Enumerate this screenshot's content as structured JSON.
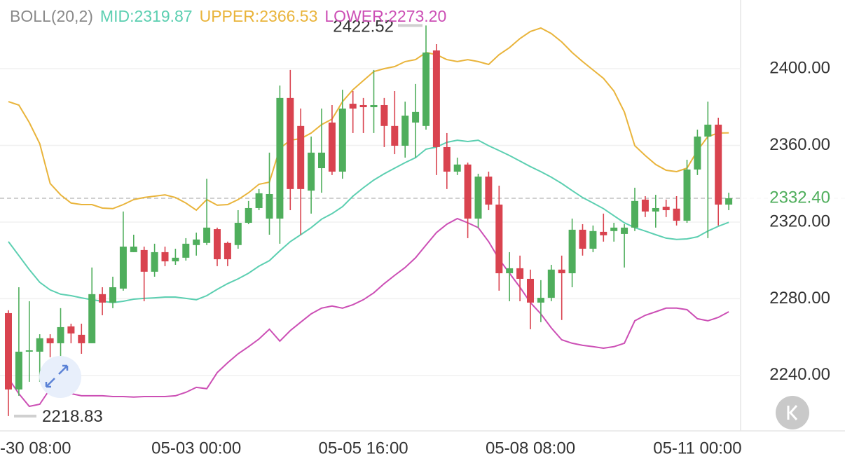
{
  "chart_data": {
    "type": "candlestick",
    "legend_title": "BOLL(20,2)",
    "categories": [
      null,
      null,
      "-30 08:00",
      null,
      null,
      null,
      null,
      null,
      null,
      null,
      null,
      null,
      null,
      null,
      null,
      null,
      null,
      null,
      "05-03 00:00",
      null,
      null,
      null,
      null,
      null,
      null,
      null,
      null,
      null,
      null,
      null,
      null,
      null,
      null,
      null,
      "05-05 16:00",
      null,
      null,
      null,
      null,
      null,
      null,
      null,
      null,
      null,
      null,
      null,
      null,
      null,
      null,
      null,
      "05-08 08:00",
      null,
      null,
      null,
      null,
      null,
      null,
      null,
      null,
      null,
      null,
      null,
      null,
      null,
      null,
      null,
      "05-11 00:00",
      null,
      null,
      null
    ],
    "open": [
      2272.5,
      2232.7,
      2252.4,
      2252.4,
      2259.4,
      2256.8,
      2265.6,
      2261.2,
      2256.8,
      2282.4,
      2278,
      2285.3,
      2304.3,
      2305.4,
      2294.1,
      2304.3,
      2299.5,
      2301.4,
      2308,
      2309.1,
      2316.3,
      2309.1,
      2308,
      2319.6,
      2327.3,
      2321.8,
      2321.8,
      2384.7,
      2370.1,
      2336.4,
      2348.1,
      2371.9,
      2346.3,
      2381.7,
      2381,
      2379.9,
      2381,
      2370.1,
      2359.8,
      2371.9,
      2370.1,
      2409.5,
      2359.1,
      2346.3,
      2350,
      2321.8,
      2343.7,
      2329.1,
      2293.3,
      2295.9,
      2290.4,
      2278,
      2280.5,
      2295.2,
      2293.3,
      2316,
      2306.1,
      2314.9,
      2315.3,
      2313.8,
      2317.1,
      2331.7,
      2325.5,
      2328,
      2327,
      2320.7,
      2347.4,
      2364.6,
      2370.8,
      2329.1
    ],
    "high": [
      2274,
      2286,
      2278.7,
      2261.5,
      2261.5,
      2275.1,
      2267,
      2267,
      2296.3,
      2286,
      2291.5,
      2325.5,
      2313.4,
      2307.2,
      2308.7,
      2307.2,
      2306.1,
      2311.6,
      2314.5,
      2342.6,
      2317.1,
      2309.8,
      2326.2,
      2331,
      2337.2,
      2356.2,
      2391.2,
      2399.3,
      2379.2,
      2364.6,
      2379.2,
      2381,
      2389,
      2388.3,
      2384.7,
      2399.3,
      2384.7,
      2388.3,
      2382.8,
      2392,
      2422.52,
      2412.8,
      2366.4,
      2353.6,
      2351,
      2345.2,
      2346.3,
      2339,
      2304.3,
      2302.5,
      2295.2,
      2289.7,
      2297.7,
      2302.5,
      2321.8,
      2318.9,
      2318.2,
      2324.4,
      2319.6,
      2318.9,
      2337.9,
      2333.5,
      2334.2,
      2331.7,
      2333.5,
      2352.5,
      2368.2,
      2382.8,
      2374.4,
      2335.3
    ],
    "low": [
      2218.83,
      2229.4,
      2236.7,
      2236.7,
      2249.5,
      2246.9,
      2256.8,
      2251.3,
      2256.8,
      2271.4,
      2275.1,
      2284.2,
      2304.3,
      2278.7,
      2291.5,
      2297,
      2297.7,
      2299.9,
      2302.5,
      2308,
      2297,
      2297,
      2306.1,
      2318.9,
      2326.2,
      2313.4,
      2308.7,
      2326.2,
      2313.4,
      2324.4,
      2335.3,
      2344.5,
      2342.6,
      2366.4,
      2366.4,
      2366.4,
      2359.1,
      2355.4,
      2353.6,
      2353.6,
      2368.2,
      2344.5,
      2337.2,
      2344.5,
      2311.6,
      2317.1,
      2326.2,
      2284.2,
      2278.7,
      2278.7,
      2264.1,
      2267.8,
      2278.7,
      2268.9,
      2286,
      2302.5,
      2304.3,
      2309.8,
      2309.8,
      2296.3,
      2315.3,
      2322.6,
      2317.1,
      2322.6,
      2318.2,
      2319.6,
      2344.5,
      2311.6,
      2318.2,
      2326.2
    ],
    "close": [
      2232.7,
      2252.4,
      2253.1,
      2259.4,
      2256.8,
      2265.2,
      2261.9,
      2256.8,
      2282.4,
      2278,
      2286,
      2307.2,
      2307.2,
      2294.1,
      2304.3,
      2299.5,
      2301.4,
      2308.7,
      2310.9,
      2317.1,
      2300.6,
      2300.6,
      2319.6,
      2327.3,
      2335,
      2334.6,
      2384.7,
      2337.2,
      2337.2,
      2356.2,
      2356.2,
      2346.3,
      2379.2,
      2379.2,
      2379.9,
      2381,
      2370.1,
      2359.8,
      2375.5,
      2377.4,
      2408.4,
      2359.1,
      2346.3,
      2350,
      2321.8,
      2343.7,
      2329.1,
      2293.3,
      2295.9,
      2290.4,
      2278,
      2280.5,
      2295.2,
      2293.3,
      2316,
      2306.1,
      2315.3,
      2313.1,
      2317.1,
      2317.1,
      2331,
      2325.5,
      2327.3,
      2326.2,
      2320.7,
      2347.4,
      2364.6,
      2370.8,
      2329.1,
      2332.4
    ],
    "up_color": "#4fae5c",
    "down_color": "#d9434f",
    "series": [
      {
        "name": "MID:2319.87",
        "color": "#5ccfb1",
        "values": [
          2309.8,
          2302.5,
          2295.2,
          2288.6,
          2284.6,
          2282.4,
          2281.6,
          2280.5,
          2279.5,
          2278.7,
          2278,
          2278.7,
          2279.8,
          2280.2,
          2280.5,
          2280.9,
          2280.9,
          2280.2,
          2279.5,
          2281.6,
          2284.9,
          2287.9,
          2290.4,
          2293.3,
          2297,
          2299.9,
          2305,
          2309.8,
          2313.4,
          2317.1,
          2321.5,
          2324.4,
          2328,
          2333.5,
          2337.9,
          2341.9,
          2345.2,
          2348.1,
          2351,
          2353.6,
          2358,
          2359.1,
          2361.6,
          2362.7,
          2362,
          2362.7,
          2359.8,
          2357.3,
          2354.7,
          2351.8,
          2348.9,
          2346.3,
          2343.4,
          2340.1,
          2336.4,
          2332.8,
          2329.9,
          2327,
          2323.3,
          2319.6,
          2317.1,
          2315.3,
          2313.4,
          2311.6,
          2310.9,
          2311.2,
          2312.3,
          2315.3,
          2317.8,
          2319.87
        ]
      },
      {
        "name": "UPPER:2366.53",
        "color": "#e9b43b",
        "values": [
          2382.8,
          2381,
          2371.9,
          2360.9,
          2340.1,
          2334.2,
          2329.9,
          2329.1,
          2329.1,
          2327.3,
          2327,
          2329.1,
          2331.7,
          2332.8,
          2333.5,
          2334.2,
          2332.8,
          2329.9,
          2326.2,
          2331.7,
          2328.8,
          2329.1,
          2331.7,
          2335.3,
          2339.7,
          2340.8,
          2358.4,
          2362.7,
          2363.5,
          2366.4,
          2370.8,
          2373.7,
          2382.8,
          2389,
          2393.8,
          2398.5,
          2400,
          2401.1,
          2403.7,
          2404.7,
          2408.4,
          2407.3,
          2404.7,
          2403.7,
          2404.7,
          2403.7,
          2402.2,
          2407.3,
          2411,
          2415.7,
          2419.4,
          2421.2,
          2418.3,
          2413.9,
          2408.4,
          2403.7,
          2399.3,
          2394.9,
          2388.3,
          2377.4,
          2359.8,
          2354.7,
          2350,
          2347,
          2346.3,
          2348.1,
          2357.3,
          2364.6,
          2366.4,
          2366.53
        ]
      },
      {
        "name": "LOWER:2273.20",
        "color": "#cc4fb5",
        "values": [
          2238.5,
          2230.5,
          2223.9,
          2225,
          2233.1,
          2232,
          2230.5,
          2229.4,
          2229.4,
          2229.4,
          2229,
          2229,
          2228.7,
          2229,
          2229,
          2229,
          2229.4,
          2231.2,
          2233.8,
          2233.1,
          2241.5,
          2246.6,
          2251.3,
          2255,
          2259,
          2264.1,
          2257.9,
          2263.4,
          2267.8,
          2272.1,
          2275.1,
          2276.2,
          2275.1,
          2276.9,
          2279.5,
          2283.1,
          2287.9,
          2292.2,
          2296.3,
          2301.4,
          2308,
          2314.5,
          2318.9,
          2321.8,
          2319.6,
          2317.1,
          2309.8,
          2300.6,
          2293.3,
          2286,
          2278,
          2272.1,
          2264.8,
          2258.6,
          2256.8,
          2255.7,
          2255,
          2254.2,
          2255,
          2256.8,
          2268.5,
          2271.4,
          2273.2,
          2275.1,
          2275.1,
          2274.3,
          2269.6,
          2268.5,
          2270.3,
          2273.2
        ]
      }
    ],
    "last_price": {
      "value": 2332.4,
      "label": "2332.40"
    },
    "ylim": [
      2211.1,
      2435.8
    ],
    "yticks": [
      {
        "value": 2400,
        "label": "2400.00"
      },
      {
        "value": 2360,
        "label": "2360.00"
      },
      {
        "value": 2320,
        "label": "2320.00"
      },
      {
        "value": 2280,
        "label": "2280.00"
      },
      {
        "value": 2240,
        "label": "2240.00"
      }
    ],
    "grid": true
  }
}
